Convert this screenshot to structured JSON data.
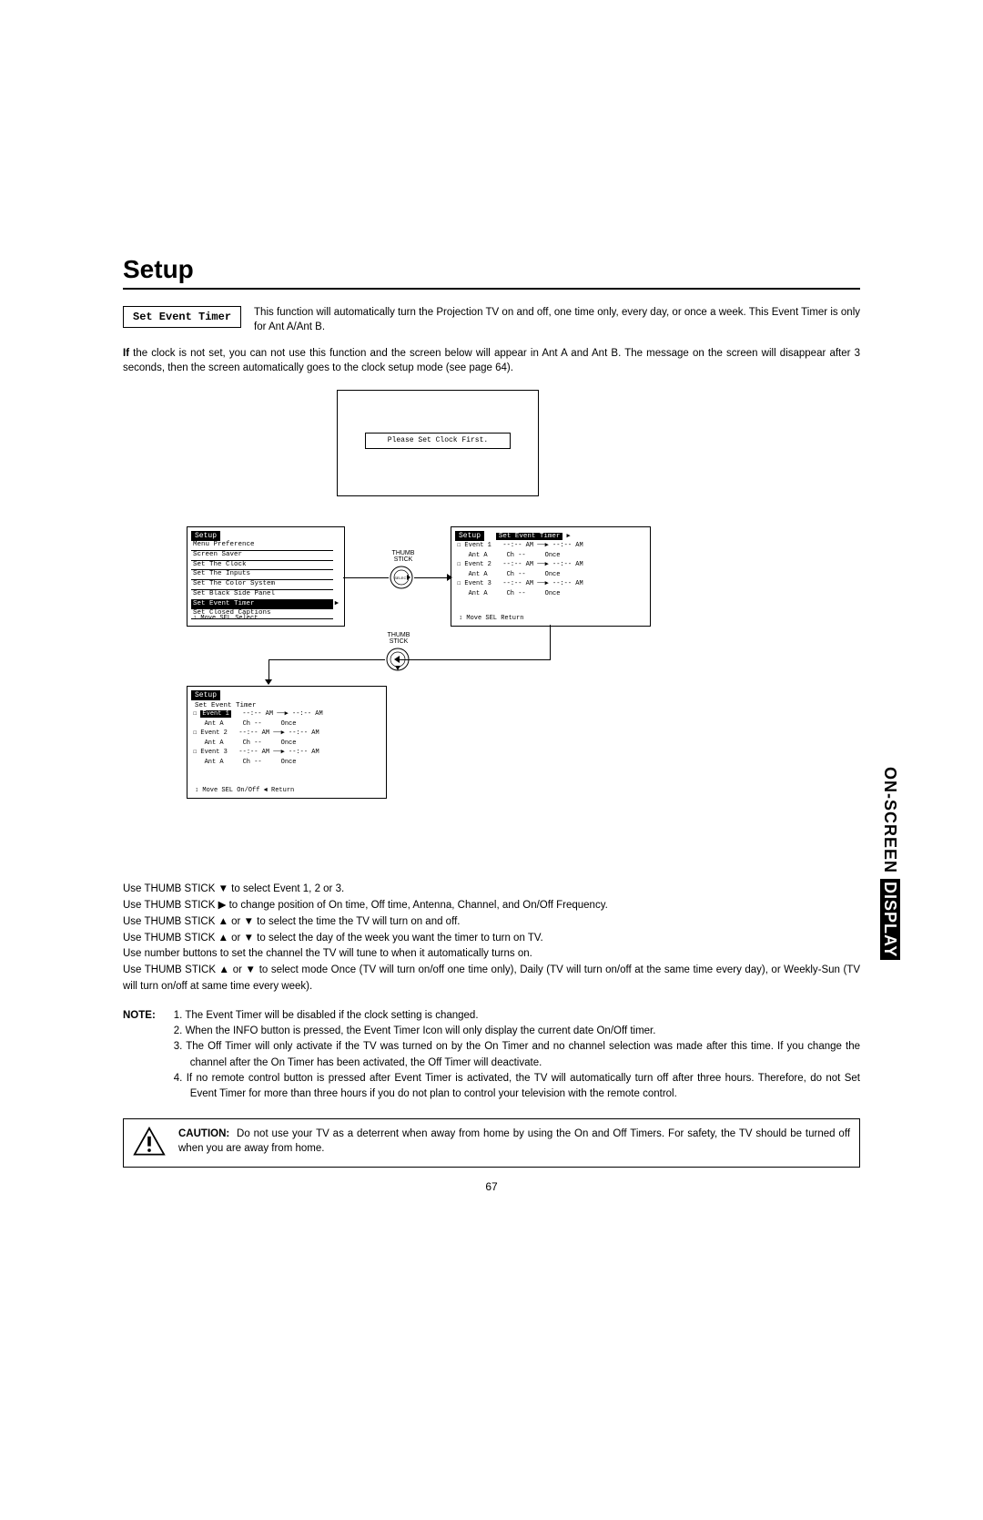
{
  "title": "Setup",
  "section_label": "Set Event Timer",
  "intro": "This function will automatically turn the Projection TV on and off, one time only, every day, or once a week.  This Event Timer is only for Ant A/Ant B.",
  "clock_warning_prefix": "If",
  "clock_warning": " the clock is not set, you can not use this function and the screen below will appear in Ant A and Ant B.  The message on the screen will disappear after 3 seconds, then the screen automatically goes to the clock setup mode (see page 64).",
  "screen_msg": "Please Set Clock First.",
  "setup_menu": {
    "title": "Setup",
    "items": [
      "Menu Preference",
      "Screen Saver",
      "Set The Clock",
      "Set The Inputs",
      "Set The Color System",
      "Set Black Side Panel",
      "Set Event Timer",
      "Set Closed Captions"
    ],
    "highlight_index": 6,
    "hint": "↕ Move  SEL Select"
  },
  "event_screen_right": {
    "title": "Setup",
    "sub": "Set Event Timer",
    "rows": [
      {
        "ev": "Event 1",
        "t1": "--:-- AM",
        "t2": "--:-- AM",
        "check": true
      },
      {
        "ant": "Ant A",
        "ch": "Ch  --",
        "freq": "Once"
      },
      {
        "ev": "Event 2",
        "t1": "--:-- AM",
        "t2": "--:-- AM",
        "check": true
      },
      {
        "ant": "Ant A",
        "ch": "Ch  --",
        "freq": "Once"
      },
      {
        "ev": "Event 3",
        "t1": "--:-- AM",
        "t2": "--:-- AM",
        "check": true
      },
      {
        "ant": "Ant A",
        "ch": "Ch  --",
        "freq": "Once"
      }
    ],
    "hint": "↕ Move  SEL Return"
  },
  "event_screen_bottom": {
    "title": "Setup",
    "sub": "Set Event Timer",
    "highlight_ev": "Event 1",
    "rows": [
      {
        "ev": "Event 1",
        "t1": "--:-- AM",
        "t2": "--:-- AM",
        "check": true,
        "hl": true
      },
      {
        "ant": "Ant A",
        "ch": "Ch  --",
        "freq": "Once"
      },
      {
        "ev": "Event 2",
        "t1": "--:-- AM",
        "t2": "--:-- AM",
        "check": true
      },
      {
        "ant": "Ant A",
        "ch": "Ch  --",
        "freq": "Once"
      },
      {
        "ev": "Event 3",
        "t1": "--:-- AM",
        "t2": "--:-- AM",
        "check": true
      },
      {
        "ant": "Ant A",
        "ch": "Ch  --",
        "freq": "Once"
      }
    ],
    "hint": "↕ Move  SEL On/Off  ◄ Return"
  },
  "thumb_label": "THUMB STICK",
  "thumb_btn": "SELECT",
  "instructions": [
    "Use THUMB STICK ▼ to select Event 1, 2 or 3.",
    "Use THUMB STICK ▶ to change position of On time, Off time, Antenna, Channel, and On/Off Frequency.",
    "Use THUMB STICK ▲ or ▼ to select the time the TV will turn on and off.",
    "Use THUMB STICK ▲ or ▼ to select the day of the week you want the timer to turn on TV.",
    "Use number buttons to set the channel the TV will tune to when it automatically turns on.",
    "Use THUMB STICK ▲ or ▼ to select mode Once (TV will turn on/off one time only), Daily (TV will turn on/off at the same time every day), or Weekly-Sun (TV will turn on/off at same time every week)."
  ],
  "note_label": "NOTE:",
  "notes": [
    "1. The Event Timer will be disabled if the clock setting is changed.",
    "2. When the INFO button is pressed, the Event Timer Icon will only display the current date On/Off timer.",
    "3. The Off Timer will only activate if the TV was turned on by the On Timer and no channel selection was made after this time.  If you change the channel after the On Timer has been activated, the Off Timer will deactivate.",
    "4. If no remote control button is pressed after Event Timer is activated, the TV will automatically turn off after three hours.  Therefore, do not Set Event Timer for more than three hours if you do not plan to control your television with the remote control."
  ],
  "caution_label": "CAUTION:",
  "caution": "Do not use your TV as a deterrent when away from home by using the On and Off Timers.  For safety, the TV should be turned off when you are away from home.",
  "page_number": "67",
  "side_tab_top": "ON-SCREEN ",
  "side_tab_bottom": "DISPLAY"
}
